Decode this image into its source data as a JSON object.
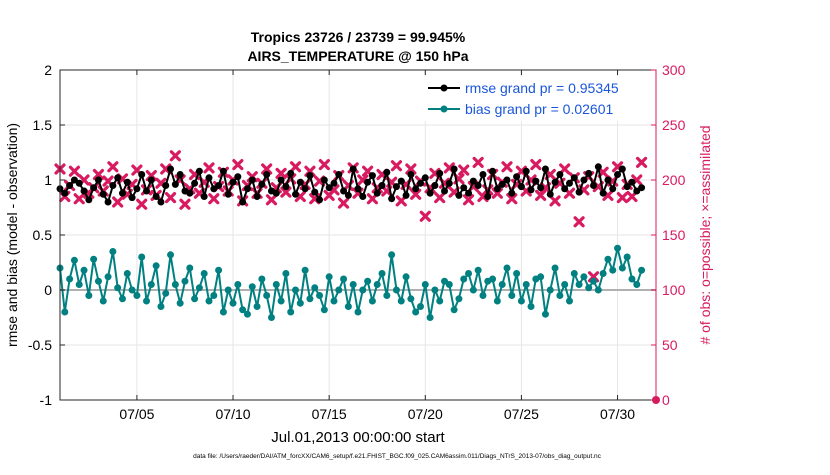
{
  "chart_data": {
    "type": "line",
    "title": "Tropics 23726 / 23739 = 99.945%",
    "subtitle": "AIRS_TEMPERATURE @ 150 hPa",
    "xlabel": "Jul.01,2013 00:00:00 start",
    "ylabel_left": "rmse and bias (model - observation)",
    "ylabel_right": "# of obs: o=possible; ×=assimilated",
    "footnote": "data file: /Users/raeder/DAI/ATM_forcXX/CAM6_setup/f.e21.FHIST_BGC.f09_025.CAM6assim.011/Diags_NTrS_2013-07/obs_diag_output.nc",
    "xlim": [
      1,
      32
    ],
    "ylim_left": [
      -1,
      2
    ],
    "ylim_right": [
      0,
      300
    ],
    "x_ticks": [
      5,
      10,
      15,
      20,
      25,
      30
    ],
    "x_tick_labels": [
      "07/05",
      "07/10",
      "07/15",
      "07/20",
      "07/25",
      "07/30"
    ],
    "y_left_ticks": [
      -1,
      -0.5,
      0,
      0.5,
      1,
      1.5,
      2
    ],
    "y_left_tick_labels": [
      "-1",
      "-0.5",
      "0",
      "0.5",
      "1",
      "1.5",
      "2"
    ],
    "y_right_ticks": [
      0,
      50,
      100,
      150,
      200,
      250,
      300
    ],
    "y_right_tick_labels": [
      "0",
      "50",
      "100",
      "150",
      "200",
      "250",
      "300"
    ],
    "legend_position": "top-right",
    "colors": {
      "rmse": "#000000",
      "bias": "#008080",
      "counts": "#d81b60",
      "zero_line": "#b0b0b0",
      "grid": "#e6e6e6",
      "legend_text": "#1a56db"
    },
    "x_start": 1.0,
    "x_step": 0.25,
    "series": [
      {
        "name": "rmse grand pr = 0.95345",
        "axis": "left",
        "values": [
          0.92,
          0.88,
          0.95,
          1.0,
          0.97,
          0.9,
          0.82,
          0.93,
          1.0,
          0.87,
          0.8,
          0.95,
          1.02,
          0.88,
          0.98,
          0.84,
          0.92,
          1.05,
          0.9,
          1.0,
          0.85,
          0.8,
          0.95,
          1.1,
          0.96,
          1.05,
          0.9,
          0.88,
          0.97,
          1.08,
          0.85,
          1.02,
          0.92,
          0.95,
          1.08,
          0.87,
          0.98,
          1.03,
          0.8,
          0.92,
          1.0,
          0.85,
          0.96,
          1.05,
          0.9,
          0.88,
          1.0,
          0.94,
          1.06,
          0.87,
          0.98,
          0.92,
          1.04,
          0.89,
          0.82,
          1.0,
          0.93,
          0.97,
          1.05,
          0.9,
          0.86,
          1.1,
          0.92,
          0.85,
          0.98,
          1.04,
          0.88,
          0.95,
          1.07,
          0.83,
          0.94,
          0.99,
          0.86,
          1.05,
          0.92,
          0.97,
          1.02,
          0.88,
          0.95,
          1.06,
          0.9,
          0.97,
          1.1,
          0.86,
          0.93,
          0.88,
          0.99,
          0.95,
          1.05,
          0.85,
          1.08,
          0.92,
          0.96,
          1.0,
          0.88,
          1.03,
          0.94,
          1.08,
          0.91,
          0.99,
          0.93,
          1.1,
          0.87,
          0.98,
          1.05,
          0.92,
          0.97,
          1.02,
          0.89,
          1.0,
          1.06,
          0.95,
          1.12,
          0.88,
          1.0,
          0.92,
          1.05,
          1.1,
          0.94,
          0.98,
          0.9,
          0.93
        ]
      },
      {
        "name": "bias grand pr = 0.02601",
        "axis": "left",
        "values": [
          0.2,
          -0.2,
          0.1,
          0.27,
          0.05,
          0.18,
          -0.05,
          0.28,
          0.08,
          -0.1,
          0.12,
          0.35,
          0.02,
          -0.08,
          0.15,
          0.0,
          -0.05,
          0.3,
          -0.1,
          0.05,
          0.22,
          -0.15,
          -0.03,
          0.32,
          0.05,
          -0.12,
          0.08,
          0.2,
          -0.08,
          0.02,
          0.15,
          -0.1,
          -0.05,
          0.18,
          -0.2,
          0.0,
          -0.12,
          0.05,
          -0.18,
          -0.22,
          0.03,
          -0.15,
          0.1,
          -0.05,
          -0.25,
          0.05,
          -0.1,
          0.15,
          -0.2,
          0.0,
          -0.12,
          0.18,
          -0.08,
          0.02,
          -0.05,
          -0.18,
          0.12,
          -0.1,
          0.0,
          0.1,
          -0.15,
          0.05,
          -0.2,
          0.0,
          0.08,
          -0.1,
          0.05,
          0.15,
          -0.05,
          0.32,
          0.0,
          -0.1,
          0.12,
          -0.08,
          -0.2,
          -0.15,
          0.05,
          -0.25,
          0.0,
          -0.1,
          0.08,
          0.05,
          -0.18,
          -0.08,
          0.1,
          0.15,
          0.0,
          0.18,
          -0.05,
          0.08,
          0.1,
          -0.1,
          0.05,
          0.2,
          -0.05,
          0.15,
          -0.1,
          0.05,
          -0.15,
          0.1,
          0.12,
          -0.22,
          0.0,
          0.2,
          -0.05,
          0.05,
          -0.1,
          0.15,
          0.05,
          0.12,
          0.02,
          0.08,
          0.0,
          0.15,
          0.28,
          0.18,
          0.38,
          0.2,
          0.3,
          0.1,
          0.05,
          0.18
        ]
      },
      {
        "name": "obs assimilated",
        "axis": "right",
        "values": [
          210,
          185,
          195,
          208,
          183,
          200,
          188,
          193,
          205,
          190,
          199,
          212,
          180,
          201,
          187,
          196,
          209,
          178,
          191,
          204,
          186,
          197,
          210,
          184,
          222,
          200,
          178,
          192,
          205,
          188,
          198,
          211,
          183,
          194,
          207,
          190,
          200,
          214,
          181,
          195,
          203,
          188,
          197,
          210,
          182,
          193,
          206,
          189,
          201,
          212,
          185,
          196,
          208,
          183,
          199,
          214,
          186,
          191,
          204,
          179,
          195,
          211,
          188,
          200,
          208,
          183,
          193,
          205,
          190,
          198,
          213,
          181,
          196,
          210,
          187,
          199,
          167,
          193,
          206,
          184,
          197,
          211,
          189,
          201,
          209,
          182,
          194,
          216,
          185,
          191,
          205,
          188,
          198,
          212,
          183,
          196,
          208,
          190,
          200,
          214,
          186,
          193,
          205,
          181,
          197,
          210,
          188,
          202,
          162,
          191,
          203,
          112,
          194,
          207,
          186,
          199,
          212,
          184,
          196,
          185,
          200,
          216
        ]
      }
    ]
  }
}
